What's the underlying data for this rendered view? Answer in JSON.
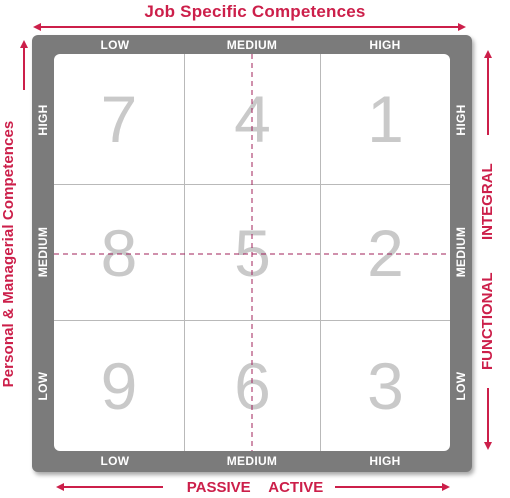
{
  "titles": {
    "top": "Job Specific Competences",
    "left": "Personal & Managerial Competences",
    "bottom": "PASSIVE ACTIVE",
    "right_integral": "INTEGRAL",
    "right_functional": "FUNCTIONAL"
  },
  "axis_top": [
    "LOW",
    "MEDIUM",
    "HIGH"
  ],
  "axis_bottom": [
    "LOW",
    "MEDIUM",
    "HIGH"
  ],
  "axis_left": [
    "HIGH",
    "MEDIUM",
    "LOW"
  ],
  "axis_right": [
    "HIGH",
    "MEDIUM",
    "LOW"
  ],
  "cells": [
    [
      "7",
      "4",
      "1"
    ],
    [
      "8",
      "5",
      "2"
    ],
    [
      "9",
      "6",
      "3"
    ]
  ],
  "colors": {
    "accent": "#cc1f4a",
    "frame": "#7b7b7b",
    "number": "#c9c9c9",
    "guide": "#a0205a"
  }
}
